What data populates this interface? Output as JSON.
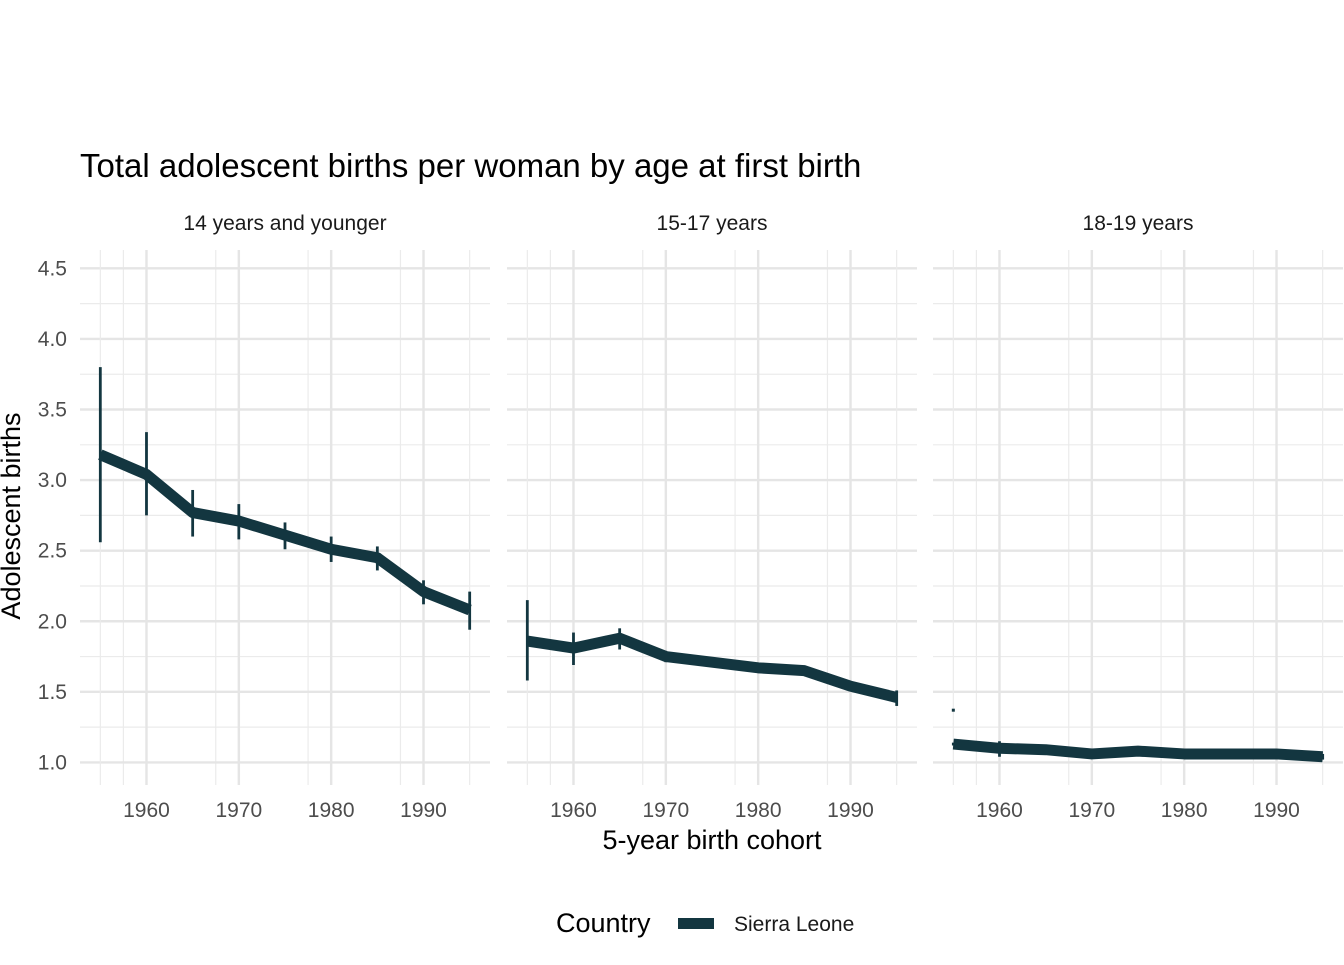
{
  "chart_data": {
    "type": "line",
    "title": "Total adolescent births per woman by age at first birth",
    "xlabel": "5-year birth cohort",
    "ylabel": "Adolescent births",
    "ylim": [
      0.84,
      4.63
    ],
    "xlim": [
      1952.8,
      1997.2
    ],
    "yticks": [
      "1.0",
      "1.5",
      "2.0",
      "2.5",
      "3.0",
      "3.5",
      "4.0",
      "4.5"
    ],
    "xticks": [
      "1960",
      "1970",
      "1980",
      "1990"
    ],
    "grid": true,
    "legend": {
      "title": "Country",
      "placement": "bottom",
      "entries": [
        "Sierra Leone"
      ]
    },
    "series_color": "#133640",
    "x": [
      1955,
      1960,
      1965,
      1970,
      1975,
      1980,
      1985,
      1990,
      1995
    ],
    "panels": [
      {
        "label": "14 years and younger",
        "values": [
          3.18,
          3.04,
          2.77,
          2.71,
          2.61,
          2.51,
          2.45,
          2.21,
          2.08
        ],
        "lower": [
          2.56,
          2.75,
          2.6,
          2.58,
          2.51,
          2.42,
          2.36,
          2.12,
          1.94
        ],
        "upper": [
          3.8,
          3.34,
          2.93,
          2.83,
          2.7,
          2.6,
          2.53,
          2.29,
          2.21
        ]
      },
      {
        "label": "15-17 years",
        "values": [
          1.86,
          1.81,
          1.88,
          1.75,
          1.71,
          1.67,
          1.65,
          1.54,
          1.46
        ],
        "lower": [
          1.58,
          1.69,
          1.8,
          1.71,
          1.68,
          1.65,
          1.63,
          1.52,
          1.4
        ],
        "upper": [
          2.15,
          1.92,
          1.95,
          1.79,
          1.74,
          1.69,
          1.67,
          1.56,
          1.51
        ]
      },
      {
        "label": "18-19 years",
        "values": [
          1.13,
          1.1,
          1.09,
          1.06,
          1.08,
          1.06,
          1.06,
          1.06,
          1.04
        ],
        "lower": [
          1.12,
          1.04,
          1.08,
          1.05,
          1.07,
          1.05,
          1.05,
          1.05,
          1.02
        ],
        "upper": [
          1.14,
          1.15,
          1.1,
          1.07,
          1.09,
          1.07,
          1.07,
          1.07,
          1.06
        ],
        "extra_point": {
          "x": 1955,
          "y": 1.37
        }
      }
    ]
  }
}
